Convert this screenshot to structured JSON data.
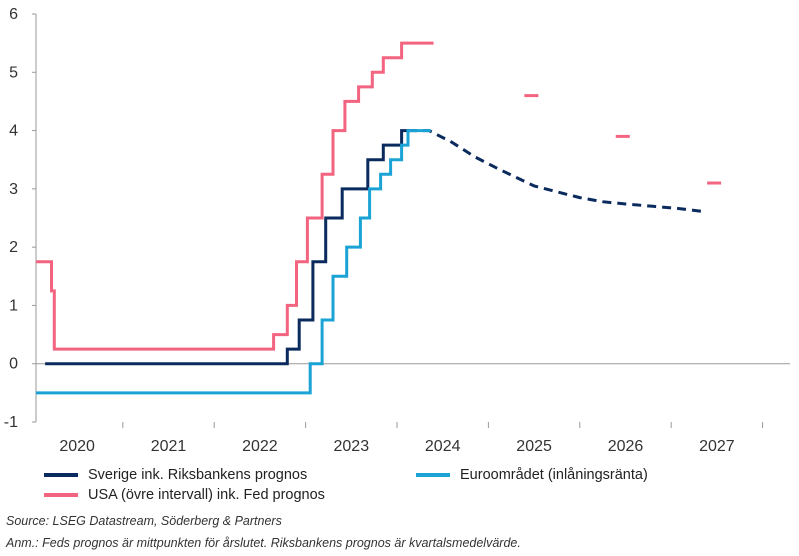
{
  "chart_data": {
    "type": "line",
    "x_unit": "year",
    "xlim": [
      2019.55,
      2027.8
    ],
    "ylim": [
      -1,
      6
    ],
    "y_ticks": [
      -1,
      0,
      1,
      2,
      3,
      4,
      5,
      6
    ],
    "x_tick_labels": [
      "2020",
      "2021",
      "2022",
      "2023",
      "2024",
      "2025",
      "2026",
      "2027"
    ],
    "x_tick_values": [
      2020,
      2021,
      2022,
      2023,
      2024,
      2025,
      2026,
      2027
    ],
    "grid": false,
    "series": [
      {
        "name": "Sverige ink. Riksbankens prognos",
        "color": "#0b2a5e",
        "style": "step",
        "points": [
          [
            2019.65,
            0
          ],
          [
            2022.3,
            0
          ],
          [
            2022.3,
            0.25
          ],
          [
            2022.43,
            0.25
          ],
          [
            2022.43,
            0.75
          ],
          [
            2022.58,
            0.75
          ],
          [
            2022.58,
            1.75
          ],
          [
            2022.72,
            1.75
          ],
          [
            2022.72,
            2.5
          ],
          [
            2022.9,
            2.5
          ],
          [
            2022.9,
            3.0
          ],
          [
            2023.18,
            3.0
          ],
          [
            2023.18,
            3.5
          ],
          [
            2023.35,
            3.5
          ],
          [
            2023.35,
            3.75
          ],
          [
            2023.55,
            3.75
          ],
          [
            2023.55,
            4.0
          ],
          [
            2023.62,
            4.0
          ]
        ]
      },
      {
        "name": "Sverige ink. Riksbankens prognos",
        "color": "#0b2a5e",
        "style": "forecast",
        "points": [
          [
            2023.62,
            4.0
          ],
          [
            2023.85,
            4.0
          ],
          [
            2024.1,
            3.8
          ],
          [
            2024.35,
            3.55
          ],
          [
            2024.6,
            3.35
          ],
          [
            2024.8,
            3.2
          ],
          [
            2025.0,
            3.05
          ],
          [
            2025.25,
            2.95
          ],
          [
            2025.5,
            2.85
          ],
          [
            2025.75,
            2.78
          ],
          [
            2026.0,
            2.74
          ],
          [
            2026.3,
            2.7
          ],
          [
            2026.6,
            2.66
          ],
          [
            2026.86,
            2.61
          ]
        ]
      },
      {
        "name": "Euroområdet (inlåningsränta)",
        "color": "#1aa3d4",
        "style": "step",
        "points": [
          [
            2019.55,
            -0.5
          ],
          [
            2022.55,
            -0.5
          ],
          [
            2022.55,
            0
          ],
          [
            2022.68,
            0
          ],
          [
            2022.68,
            0.75
          ],
          [
            2022.8,
            0.75
          ],
          [
            2022.8,
            1.5
          ],
          [
            2022.95,
            1.5
          ],
          [
            2022.95,
            2.0
          ],
          [
            2023.1,
            2.0
          ],
          [
            2023.1,
            2.5
          ],
          [
            2023.2,
            2.5
          ],
          [
            2023.2,
            3.0
          ],
          [
            2023.32,
            3.0
          ],
          [
            2023.32,
            3.25
          ],
          [
            2023.43,
            3.25
          ],
          [
            2023.43,
            3.5
          ],
          [
            2023.55,
            3.5
          ],
          [
            2023.55,
            3.75
          ],
          [
            2023.62,
            3.75
          ],
          [
            2023.62,
            4.0
          ],
          [
            2023.87,
            4.0
          ]
        ]
      },
      {
        "name": "USA (övre intervall) ink. Fed prognos",
        "color": "#f2647f",
        "style": "step",
        "points": [
          [
            2019.55,
            1.75
          ],
          [
            2019.72,
            1.75
          ],
          [
            2019.72,
            1.25
          ],
          [
            2019.75,
            1.25
          ],
          [
            2019.75,
            0.25
          ],
          [
            2022.15,
            0.25
          ],
          [
            2022.15,
            0.5
          ],
          [
            2022.3,
            0.5
          ],
          [
            2022.3,
            1.0
          ],
          [
            2022.4,
            1.0
          ],
          [
            2022.4,
            1.75
          ],
          [
            2022.52,
            1.75
          ],
          [
            2022.52,
            2.5
          ],
          [
            2022.68,
            2.5
          ],
          [
            2022.68,
            3.25
          ],
          [
            2022.8,
            3.25
          ],
          [
            2022.8,
            4.0
          ],
          [
            2022.93,
            4.0
          ],
          [
            2022.93,
            4.5
          ],
          [
            2023.08,
            4.5
          ],
          [
            2023.08,
            4.75
          ],
          [
            2023.23,
            4.75
          ],
          [
            2023.23,
            5.0
          ],
          [
            2023.35,
            5.0
          ],
          [
            2023.35,
            5.25
          ],
          [
            2023.55,
            5.25
          ],
          [
            2023.55,
            5.5
          ],
          [
            2023.9,
            5.5
          ]
        ]
      },
      {
        "name": "USA (övre intervall) ink. Fed prognos",
        "color": "#f2647f",
        "style": "markers",
        "points": [
          [
            2024.97,
            4.6
          ],
          [
            2025.97,
            3.9
          ],
          [
            2026.97,
            3.1
          ]
        ]
      }
    ],
    "legend": {
      "entries": [
        {
          "label": "Sverige ink. Riksbankens prognos",
          "color": "#0b2a5e"
        },
        {
          "label": "Euroområdet (inlåningsränta)",
          "color": "#1aa3d4"
        },
        {
          "label": "USA (övre intervall) ink. Fed prognos",
          "color": "#f2647f"
        }
      ],
      "placement": "bottom"
    }
  },
  "notes": {
    "source": "Source: LSEG Datastream, Söderberg & Partners",
    "annotation": "Anm.: Feds prognos är mittpunkten för årslutet. Riksbankens prognos är kvartalsmedelvärde."
  }
}
